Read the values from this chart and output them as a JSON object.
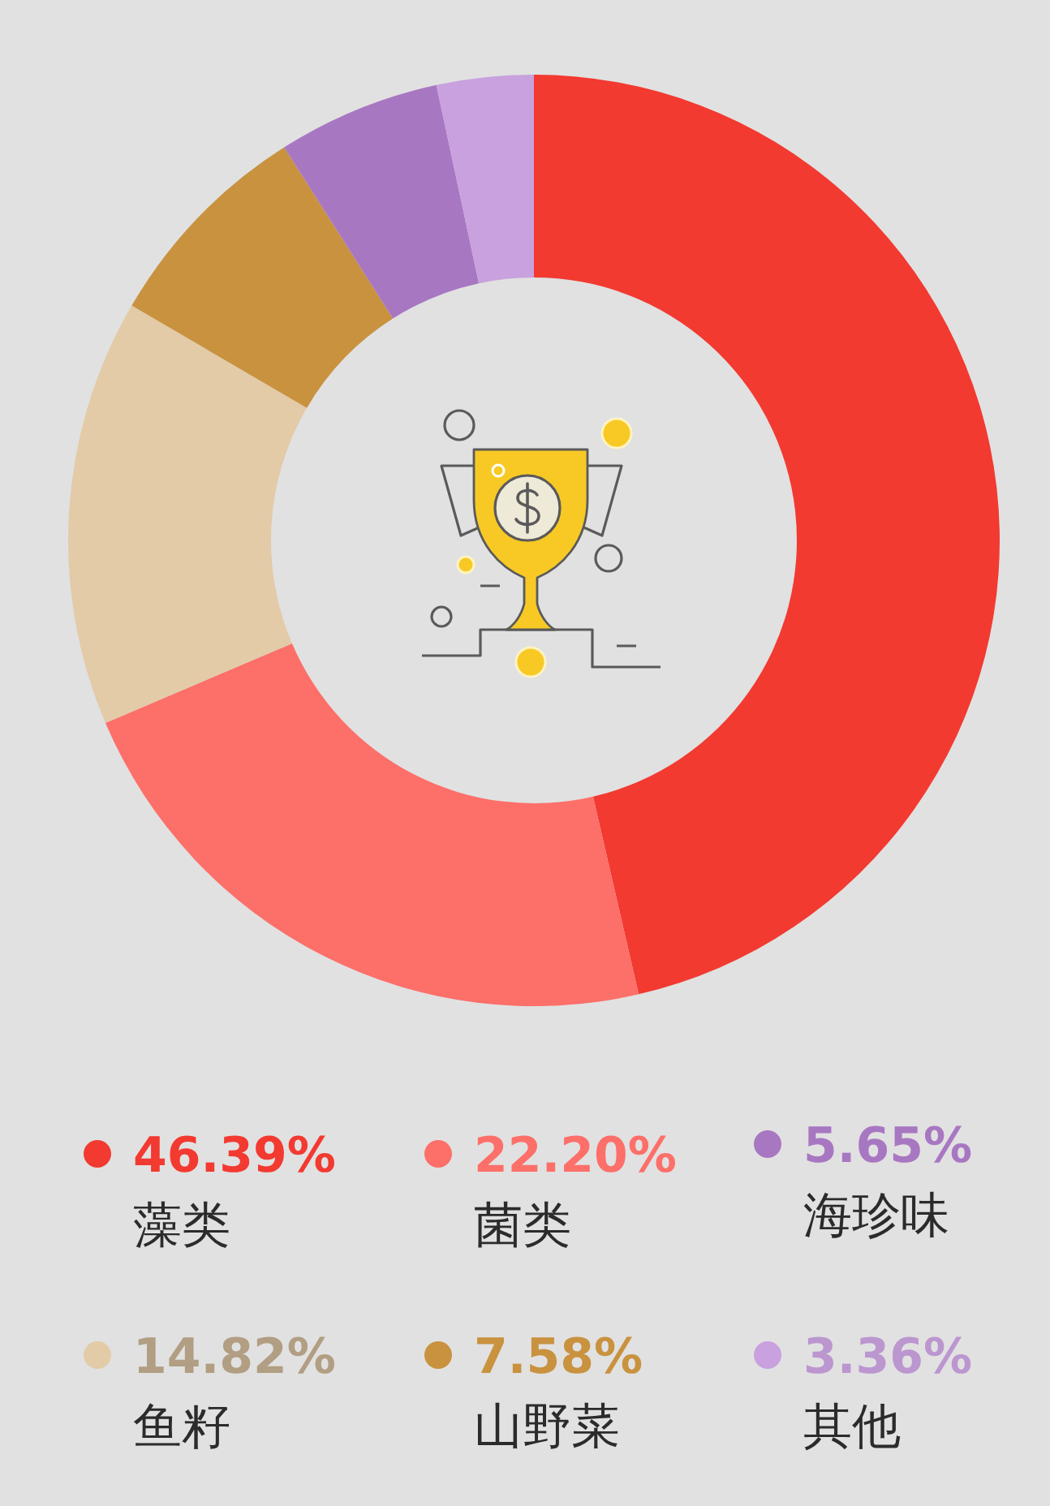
{
  "chart_data": {
    "type": "donut",
    "categories": [
      "藻类",
      "菌类",
      "鱼籽",
      "山野菜",
      "海珍味",
      "其他"
    ],
    "values": [
      46.39,
      22.2,
      14.82,
      7.58,
      5.65,
      3.36
    ],
    "colors": [
      "#f23a31",
      "#fd6f69",
      "#e3cba8",
      "#c9923f",
      "#a877c2",
      "#c9a1de"
    ],
    "value_labels": [
      "46.39%",
      "22.20%",
      "14.82%",
      "7.58%",
      "5.65%",
      "3.36%"
    ],
    "legend": "bottom"
  }
}
